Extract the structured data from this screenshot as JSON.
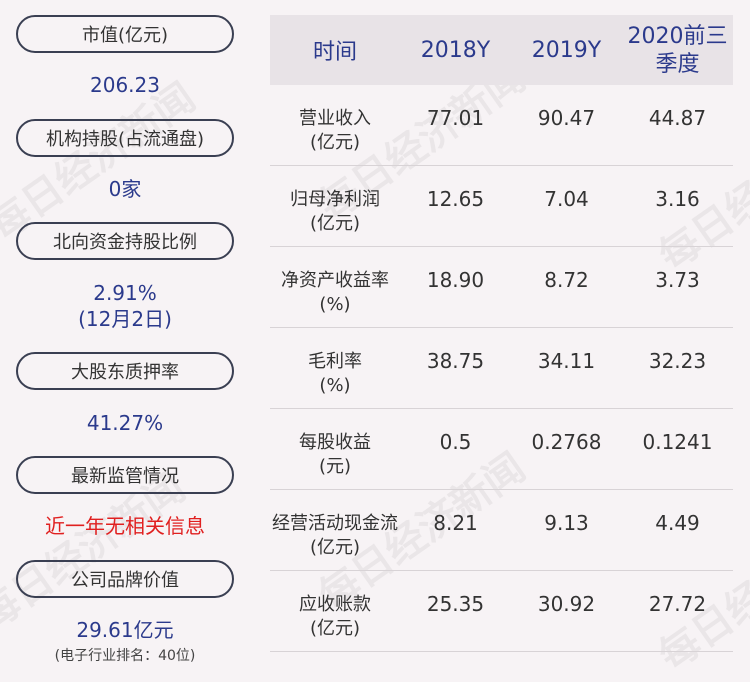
{
  "left": {
    "items": [
      {
        "label": "市值(亿元)",
        "value": "206.23"
      },
      {
        "label": "机构持股(占流通盘)",
        "value": "0家"
      },
      {
        "label": "北向资金持股比例",
        "value": "2.91%",
        "value2": "(12月2日)"
      },
      {
        "label": "大股东质押率",
        "value": "41.27%"
      },
      {
        "label": "最新监管情况",
        "value": "近一年无相关信息"
      },
      {
        "label": "公司品牌价值",
        "value": "29.61亿元",
        "note": "(电子行业排名：40位)"
      }
    ]
  },
  "table": {
    "headers": [
      "时间",
      "2018Y",
      "2019Y",
      "2020前三季度"
    ],
    "rows": [
      {
        "label1": "营业收入",
        "label2": "(亿元)",
        "v": [
          "77.01",
          "90.47",
          "44.87"
        ]
      },
      {
        "label1": "归母净利润",
        "label2": "(亿元)",
        "v": [
          "12.65",
          "7.04",
          "3.16"
        ]
      },
      {
        "label1": "净资产收益率",
        "label2": "(%)",
        "v": [
          "18.90",
          "8.72",
          "3.73"
        ]
      },
      {
        "label1": "毛利率",
        "label2": "(%)",
        "v": [
          "38.75",
          "34.11",
          "32.23"
        ]
      },
      {
        "label1": "每股收益",
        "label2": "(元)",
        "v": [
          "0.5",
          "0.2768",
          "0.1241"
        ]
      },
      {
        "label1": "经营活动现金流",
        "label2": "(亿元)",
        "v": [
          "8.21",
          "9.13",
          "4.49"
        ]
      },
      {
        "label1": "应收账款",
        "label2": "(亿元)",
        "v": [
          "25.35",
          "30.92",
          "27.72"
        ]
      }
    ]
  },
  "watermark": "每日经济新闻",
  "colors": {
    "value_blue": "#2b3a8c",
    "alert_red": "#e02020",
    "header_bg": "#e8e3e7",
    "page_bg": "#f7f3f5"
  }
}
